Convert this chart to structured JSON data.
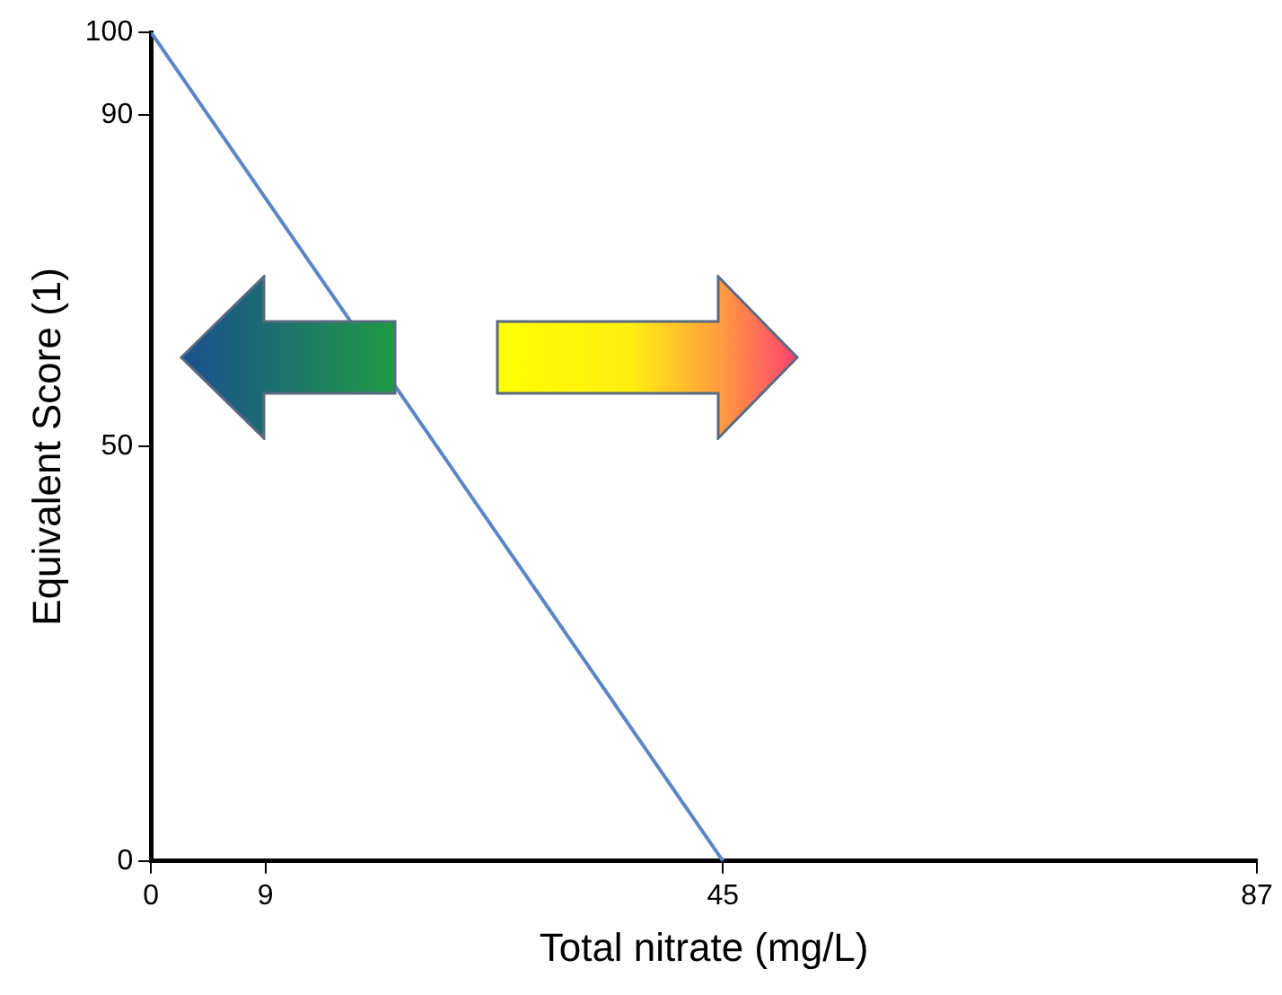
{
  "chart_data": {
    "type": "line",
    "xlabel": "Total nitrate (mg/L)",
    "ylabel": "Equivalent Score (1)",
    "series": [
      {
        "color": "#5b86c5",
        "x": [
          0,
          45
        ],
        "values": [
          100,
          0
        ]
      }
    ],
    "xlim": [
      0,
      87
    ],
    "xticks": [
      0,
      9,
      45,
      87
    ],
    "ylim": [
      0,
      100
    ],
    "yticks": [
      0,
      50,
      90,
      100
    ],
    "marker": "none",
    "line_style": "solid",
    "legend": false
  }
}
